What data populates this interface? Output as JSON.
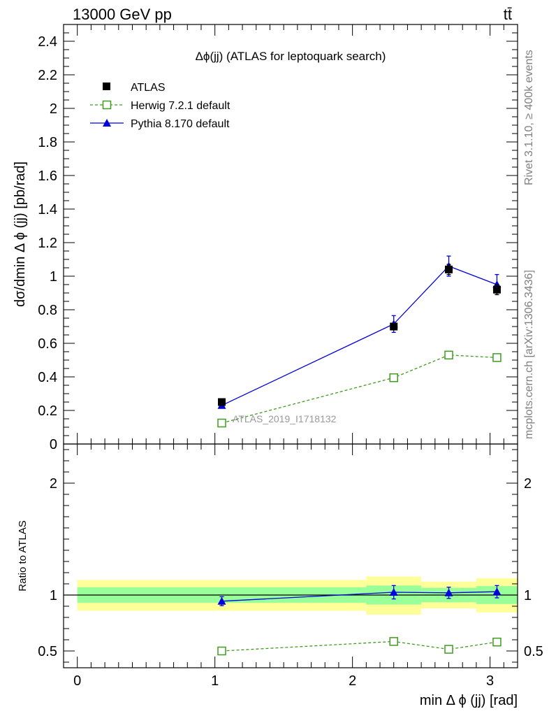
{
  "header": {
    "process": "13000 GeV pp",
    "final_state": "tt̄",
    "rivet_label": "Rivet 3.1.10, ≥ 400k events",
    "source_label": "mcplots.cern.ch [arXiv:1306.3436]",
    "analysis_id": "ATLAS_2019_I1718132"
  },
  "chart_data": [
    {
      "panel": "main",
      "type": "line",
      "title": "Δϕ(jj) (ATLAS for leptoquark search)",
      "xlabel": "",
      "ylabel": "dσ/dmin Δ ϕ (jj) [pb/rad]",
      "xlim": [
        -0.1,
        3.2
      ],
      "ylim": [
        0,
        2.5
      ],
      "yticks": [
        0,
        0.2,
        0.4,
        0.6,
        0.8,
        1,
        1.2,
        1.4,
        1.6,
        1.8,
        2,
        2.2,
        2.4
      ],
      "ytick_labels": [
        "0",
        "0.2",
        "0.4",
        "0.6",
        "0.8",
        "1",
        "1.2",
        "1.4",
        "1.6",
        "1.8",
        "2",
        "2.2",
        "2.4"
      ],
      "legend_position": "top-left",
      "x": [
        1.05,
        2.3,
        2.7,
        3.05
      ],
      "series": [
        {
          "name": "ATLAS",
          "values": [
            0.25,
            0.7,
            1.04,
            0.92
          ],
          "err": [
            0.012,
            0.015,
            0.03,
            0.03
          ],
          "color": "#000000",
          "marker": "filled-square",
          "line": "none"
        },
        {
          "name": "Herwig 7.2.1 default",
          "values": [
            0.125,
            0.395,
            0.53,
            0.515
          ],
          "err": [
            0.005,
            0.01,
            0.012,
            0.012
          ],
          "color": "#3f9b1f",
          "marker": "open-square",
          "line": "dashed"
        },
        {
          "name": "Pythia 8.170 default",
          "values": [
            0.23,
            0.715,
            1.06,
            0.95
          ],
          "err": [
            0.012,
            0.05,
            0.06,
            0.06
          ],
          "color": "#0000dd",
          "marker": "filled-triangle",
          "line": "solid"
        }
      ]
    },
    {
      "panel": "ratio",
      "type": "line",
      "xlabel": "min Δ ϕ (jj) [rad]",
      "ylabel": "Ratio to ATLAS",
      "xlim": [
        -0.1,
        3.2
      ],
      "ylim": [
        0.35,
        2.35
      ],
      "xticks": [
        0,
        1,
        2,
        3
      ],
      "xtick_labels": [
        "0",
        "1",
        "2",
        "3"
      ],
      "yticks": [
        0.5,
        1,
        2
      ],
      "ytick_labels": [
        "0.5",
        "1",
        "2"
      ],
      "bands": {
        "bin_edges": [
          0,
          2.1,
          2.5,
          2.9,
          3.2
        ],
        "stat": {
          "low": [
            0.93,
            0.915,
            0.935,
            0.92
          ],
          "high": [
            1.07,
            1.085,
            1.065,
            1.08
          ],
          "color": "#99ff99"
        },
        "total": {
          "low": [
            0.86,
            0.825,
            0.88,
            0.845
          ],
          "high": [
            1.135,
            1.165,
            1.12,
            1.15
          ],
          "color": "#ffff99"
        }
      },
      "x": [
        1.05,
        2.3,
        2.7,
        3.05
      ],
      "series": [
        {
          "name": "Herwig 7.2.1 default",
          "values": [
            0.5,
            0.585,
            0.515,
            0.58
          ],
          "err": [
            0.01,
            0.012,
            0.012,
            0.012
          ],
          "color": "#3f9b1f",
          "marker": "open-square",
          "line": "dashed"
        },
        {
          "name": "Pythia 8.170 default",
          "values": [
            0.945,
            1.025,
            1.02,
            1.03
          ],
          "err": [
            0.04,
            0.06,
            0.05,
            0.055
          ],
          "color": "#0000dd",
          "marker": "filled-triangle",
          "line": "solid"
        }
      ]
    }
  ]
}
